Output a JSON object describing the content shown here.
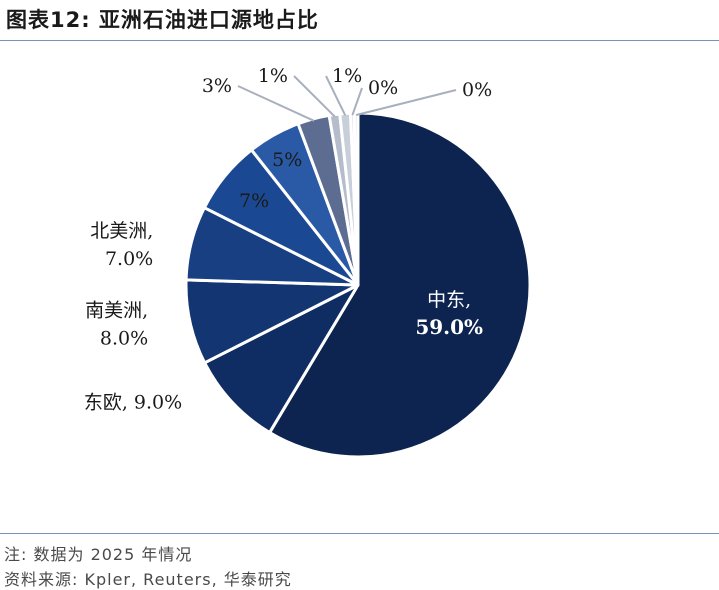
{
  "header": {
    "title": "图表12:  亚洲石油进口源地占比"
  },
  "chart_data": {
    "type": "pie",
    "slices": [
      {
        "name": "中东",
        "value": 59.0,
        "label_line1": "中东,",
        "label_line2": "59.0%",
        "color": "#0d2451"
      },
      {
        "name": "东欧",
        "value": 9.0,
        "label_line1": "东欧, 9.0%",
        "label_line2": "",
        "color": "#0f2d63"
      },
      {
        "name": "南美洲",
        "value": 8.0,
        "label_line1": "南美洲,",
        "label_line2": "8.0%",
        "color": "#133672"
      },
      {
        "name": "北美洲",
        "value": 7.0,
        "label_line1": "北美洲,",
        "label_line2": "7.0%",
        "color": "#173f82"
      },
      {
        "name": "",
        "value": 7.0,
        "label_line1": "7%",
        "label_line2": "",
        "color": "#1b4892"
      },
      {
        "name": "",
        "value": 5.0,
        "label_line1": "5%",
        "label_line2": "",
        "color": "#2a5aa6"
      },
      {
        "name": "",
        "value": 3.0,
        "label_line1": "3%",
        "label_line2": "",
        "color": "#5d6d92"
      },
      {
        "name": "",
        "value": 1.0,
        "label_line1": "1%",
        "label_line2": "",
        "color": "#b5bdcc"
      },
      {
        "name": "",
        "value": 1.0,
        "label_line1": "1%",
        "label_line2": "",
        "color": "#c9cfda"
      },
      {
        "name": "",
        "value": 0.0,
        "label_line1": "0%",
        "label_line2": "",
        "color": "#d8dce4"
      },
      {
        "name": "",
        "value": 0.0,
        "label_line1": "0%",
        "label_line2": "",
        "color": "#e3e6ec"
      }
    ]
  },
  "footer": {
    "note": "注: 数据为 2025 年情况",
    "source": "资料来源: Kpler, Reuters, 华泰研究"
  }
}
